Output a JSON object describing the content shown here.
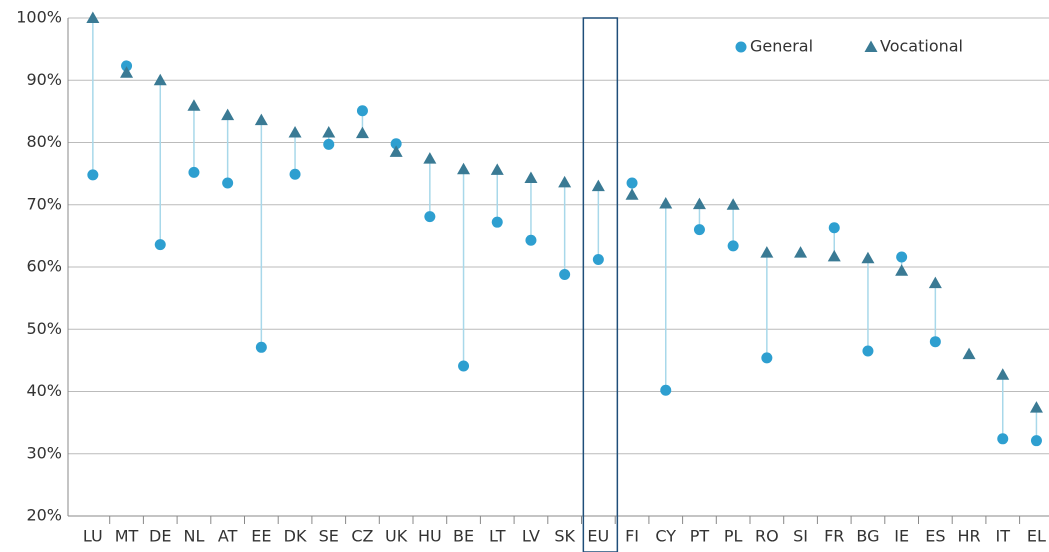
{
  "chart_data": {
    "type": "dot",
    "categories": [
      "LU",
      "MT",
      "DE",
      "NL",
      "AT",
      "EE",
      "DK",
      "SE",
      "CZ",
      "UK",
      "HU",
      "BE",
      "LT",
      "LV",
      "SK",
      "EU",
      "FI",
      "CY",
      "PT",
      "PL",
      "RO",
      "SI",
      "FR",
      "BG",
      "IE",
      "ES",
      "HR",
      "IT",
      "EL"
    ],
    "series": [
      {
        "name": "General",
        "color": "#2e9fd0",
        "marker": "circle",
        "values": [
          74.8,
          92.3,
          63.6,
          75.2,
          73.5,
          47.1,
          74.9,
          79.7,
          85.1,
          79.8,
          68.1,
          44.1,
          67.2,
          64.3,
          58.8,
          61.2,
          73.5,
          40.2,
          66.0,
          63.4,
          45.4,
          null,
          66.3,
          46.5,
          61.6,
          48.0,
          null,
          32.4,
          32.1
        ]
      },
      {
        "name": "Vocational",
        "color": "#3a7a94",
        "marker": "triangle",
        "values": [
          100,
          91.2,
          90.0,
          85.9,
          84.4,
          83.6,
          81.6,
          81.6,
          81.5,
          78.5,
          77.4,
          75.7,
          75.6,
          74.3,
          73.6,
          73.0,
          71.6,
          70.2,
          70.1,
          70.0,
          62.3,
          62.3,
          61.7,
          61.4,
          59.4,
          57.4,
          46.0,
          42.7,
          37.4
        ]
      }
    ],
    "connector_color": "#a8d8ea",
    "highlight": "EU",
    "ylim": [
      20,
      100
    ],
    "yticks": [
      {
        "value": 20,
        "label": "20%"
      },
      {
        "value": 30,
        "label": "30%"
      },
      {
        "value": 40,
        "label": "40%"
      },
      {
        "value": 50,
        "label": "50%"
      },
      {
        "value": 60,
        "label": "60%"
      },
      {
        "value": 70,
        "label": "70%"
      },
      {
        "value": 80,
        "label": "80%"
      },
      {
        "value": 90,
        "label": "90%"
      },
      {
        "value": 100,
        "label": "100%"
      }
    ],
    "grid": true
  }
}
